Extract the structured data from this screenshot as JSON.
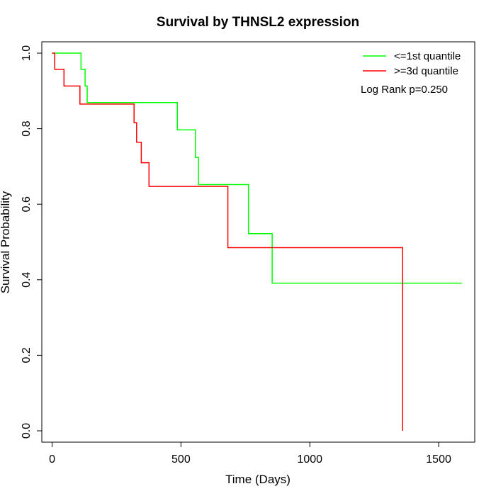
{
  "chart_data": {
    "type": "line",
    "step": true,
    "title": "Survival by THNSL2 expression",
    "xlabel": "Time (Days)",
    "ylabel": "Survival Probability",
    "xlim": [
      -40,
      1640
    ],
    "ylim": [
      -0.03,
      1.03
    ],
    "xticks": [
      0,
      500,
      1000,
      1500
    ],
    "yticks": [
      0.0,
      0.2,
      0.4,
      0.6,
      0.8,
      1.0
    ],
    "xtick_labels": [
      "0",
      "500",
      "1000",
      "1500"
    ],
    "ytick_labels": [
      "0.0",
      "0.2",
      "0.4",
      "0.6",
      "0.8",
      "1.0"
    ],
    "grid": false,
    "legend_position": "top-right",
    "annotation": "Log Rank p=0.250",
    "series": [
      {
        "name": "<=1st quantile",
        "color": "#00ff00",
        "x": [
          0,
          112,
          112,
          128,
          128,
          136,
          136,
          486,
          486,
          556,
          556,
          568,
          568,
          762,
          762,
          854,
          854,
          1590
        ],
        "y": [
          1.0,
          1.0,
          0.957,
          0.957,
          0.913,
          0.913,
          0.869,
          0.869,
          0.797,
          0.797,
          0.724,
          0.724,
          0.652,
          0.652,
          0.522,
          0.522,
          0.391,
          0.391
        ]
      },
      {
        "name": ">=3d quantile",
        "color": "#ff0000",
        "x": [
          0,
          10,
          10,
          46,
          46,
          108,
          108,
          318,
          318,
          328,
          328,
          346,
          346,
          376,
          376,
          682,
          682,
          1360,
          1360
        ],
        "y": [
          1.0,
          1.0,
          0.957,
          0.957,
          0.913,
          0.913,
          0.865,
          0.865,
          0.816,
          0.816,
          0.764,
          0.764,
          0.71,
          0.71,
          0.647,
          0.647,
          0.485,
          0.485,
          0.0
        ]
      }
    ]
  }
}
